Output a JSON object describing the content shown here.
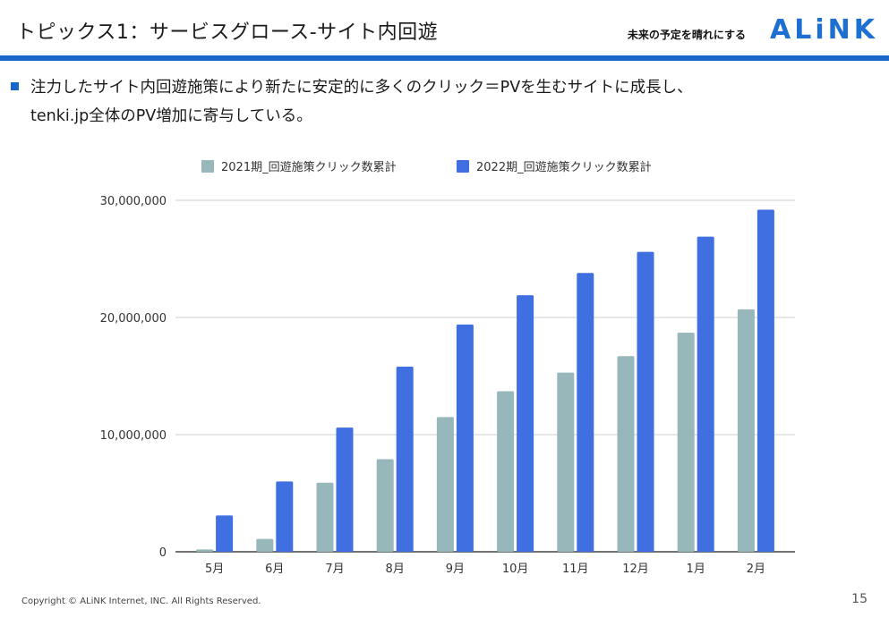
{
  "header": {
    "title": "トピックス1：サービスグロース-サイト内回遊",
    "tagline": "未来の予定を晴れにする",
    "logo": "ALiNK",
    "accent_color": "#1a66c9"
  },
  "body": {
    "line1": "注力したサイト内回遊施策により新たに安定的に多くのクリック＝PVを生むサイトに成長し、",
    "line2": "tenki.jp全体のPV増加に寄与している。"
  },
  "footer": {
    "copyright": "Copyright © ALiNK Internet, INC. All Rights Reserved.",
    "page_number": "15"
  },
  "chart_data": {
    "type": "bar",
    "title": "",
    "xlabel": "",
    "ylabel": "",
    "categories": [
      "5月",
      "6月",
      "7月",
      "8月",
      "9月",
      "10月",
      "11月",
      "12月",
      "1月",
      "2月"
    ],
    "series": [
      {
        "name": "2021期_回遊施策クリック数累計",
        "color": "#97b7bb",
        "values": [
          200000,
          1100000,
          5900000,
          7900000,
          11500000,
          13700000,
          15300000,
          16700000,
          18700000,
          20700000
        ]
      },
      {
        "name": "2022期_回遊施策クリック数累計",
        "color": "#3f6fe0",
        "values": [
          3100000,
          6000000,
          10600000,
          15800000,
          19400000,
          21900000,
          23800000,
          25600000,
          26900000,
          29200000
        ]
      }
    ],
    "ylim": [
      0,
      30000000
    ],
    "yticks": [
      0,
      10000000,
      20000000,
      30000000
    ],
    "ytick_labels": [
      "0",
      "10,000,000",
      "20,000,000",
      "30,000,000"
    ],
    "grid": true,
    "legend_position": "top"
  }
}
